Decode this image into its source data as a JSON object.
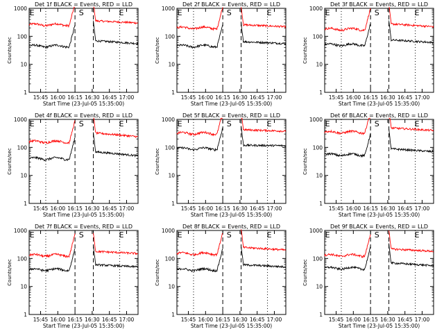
{
  "chart_data": [
    {
      "type": "line",
      "title": "Det 1f BLACK = Events, RED = LLD",
      "xlabel": "Start Time (23-Jul-05 15:35:00)",
      "ylabel": "Counts/sec",
      "yscale": "log",
      "ylim": [
        1,
        1000
      ],
      "x_ticks": [
        "15:45",
        "16:00",
        "16:15",
        "16:30",
        "16:45",
        "17:00"
      ],
      "y_ticks": [
        "1",
        "10",
        "100",
        "1000"
      ],
      "markers": [
        "E",
        "S",
        "E"
      ],
      "series": [
        {
          "color": "#ff0000",
          "pre": 260,
          "post": 360,
          "post_end": 300
        },
        {
          "color": "#000000",
          "pre": 45,
          "post": 70,
          "post_end": 55
        }
      ]
    },
    {
      "type": "line",
      "title": "Det 2f BLACK = Events, RED = LLD",
      "xlabel": "Start Time (23-Jul-05 15:35:00)",
      "ylabel": "Counts/sec",
      "yscale": "log",
      "ylim": [
        1,
        1000
      ],
      "x_ticks": [
        "15:45",
        "16:00",
        "16:15",
        "16:30",
        "16:45",
        "17:00"
      ],
      "y_ticks": [
        "1",
        "10",
        "100",
        "1000"
      ],
      "markers": [
        "E",
        "S",
        "E"
      ],
      "series": [
        {
          "color": "#ff0000",
          "pre": 200,
          "post": 260,
          "post_end": 220
        },
        {
          "color": "#000000",
          "pre": 45,
          "post": 65,
          "post_end": 55
        }
      ]
    },
    {
      "type": "line",
      "title": "Det 3f BLACK = Events, RED = LLD",
      "xlabel": "Start Time (23-Jul-05 15:35:00)",
      "ylabel": "Counts/sec",
      "yscale": "log",
      "ylim": [
        1,
        1000
      ],
      "x_ticks": [
        "15:45",
        "16:00",
        "16:15",
        "16:30",
        "16:45",
        "17:00"
      ],
      "y_ticks": [
        "1",
        "10",
        "100",
        "1000"
      ],
      "markers": [
        "E",
        "S",
        "E"
      ],
      "series": [
        {
          "color": "#ff0000",
          "pre": 180,
          "post": 280,
          "post_end": 220
        },
        {
          "color": "#000000",
          "pre": 50,
          "post": 75,
          "post_end": 60
        }
      ]
    },
    {
      "type": "line",
      "title": "Det 4f BLACK = Events, RED = LLD",
      "xlabel": "Start Time (23-Jul-05 15:35:00)",
      "ylabel": "Counts/sec",
      "yscale": "log",
      "ylim": [
        1,
        1000
      ],
      "x_ticks": [
        "15:45",
        "16:00",
        "16:15",
        "16:30",
        "16:45",
        "17:00"
      ],
      "y_ticks": [
        "1",
        "10",
        "100",
        "1000"
      ],
      "markers": [
        "E",
        "S",
        "E"
      ],
      "series": [
        {
          "color": "#ff0000",
          "pre": 160,
          "post": 330,
          "post_end": 240
        },
        {
          "color": "#000000",
          "pre": 40,
          "post": 70,
          "post_end": 50
        }
      ]
    },
    {
      "type": "line",
      "title": "Det 5f BLACK = Events, RED = LLD",
      "xlabel": "Start Time (23-Jul-05 15:35:00)",
      "ylabel": "Counts/sec",
      "yscale": "log",
      "ylim": [
        1,
        1000
      ],
      "x_ticks": [
        "15:45",
        "16:00",
        "16:15",
        "16:30",
        "16:45",
        "17:00"
      ],
      "y_ticks": [
        "1",
        "10",
        "100",
        "1000"
      ],
      "markers": [
        "E",
        "S",
        "E"
      ],
      "series": [
        {
          "color": "#ff0000",
          "pre": 320,
          "post": 430,
          "post_end": 380
        },
        {
          "color": "#000000",
          "pre": 90,
          "post": 120,
          "post_end": 115
        }
      ]
    },
    {
      "type": "line",
      "title": "Det 6f BLACK = Events, RED = LLD",
      "xlabel": "Start Time (23-Jul-05 15:35:00)",
      "ylabel": "Counts/sec",
      "yscale": "log",
      "ylim": [
        1,
        1000
      ],
      "x_ticks": [
        "15:45",
        "16:00",
        "16:15",
        "16:30",
        "16:45",
        "17:00"
      ],
      "y_ticks": [
        "1",
        "10",
        "100",
        "1000"
      ],
      "markers": [
        "E",
        "S",
        "E"
      ],
      "series": [
        {
          "color": "#ff0000",
          "pre": 350,
          "post": 500,
          "post_end": 400
        },
        {
          "color": "#000000",
          "pre": 55,
          "post": 90,
          "post_end": 70
        }
      ]
    },
    {
      "type": "line",
      "title": "Det 7f BLACK = Events, RED = LLD",
      "xlabel": "Start Time (23-Jul-05 15:35:00)",
      "ylabel": "Counts/sec",
      "yscale": "log",
      "ylim": [
        1,
        1000
      ],
      "x_ticks": [
        "15:45",
        "16:00",
        "16:15",
        "16:30",
        "16:45",
        "17:00"
      ],
      "y_ticks": [
        "1",
        "10",
        "100",
        "1000"
      ],
      "markers": [
        "E",
        "S",
        "E"
      ],
      "series": [
        {
          "color": "#ff0000",
          "pre": 130,
          "post": 180,
          "post_end": 150
        },
        {
          "color": "#000000",
          "pre": 40,
          "post": 60,
          "post_end": 50
        }
      ]
    },
    {
      "type": "line",
      "title": "Det 8f BLACK = Events, RED = LLD",
      "xlabel": "Start Time (23-Jul-05 15:35:00)",
      "ylabel": "Counts/sec",
      "yscale": "log",
      "ylim": [
        1,
        1000
      ],
      "x_ticks": [
        "15:45",
        "16:00",
        "16:15",
        "16:30",
        "16:45",
        "17:00"
      ],
      "y_ticks": [
        "1",
        "10",
        "100",
        "1000"
      ],
      "markers": [
        "E",
        "S",
        "E"
      ],
      "series": [
        {
          "color": "#ff0000",
          "pre": 150,
          "post": 250,
          "post_end": 200
        },
        {
          "color": "#000000",
          "pre": 40,
          "post": 60,
          "post_end": 50
        }
      ]
    },
    {
      "type": "line",
      "title": "Det 9f BLACK = Events, RED = LLD",
      "xlabel": "Start Time (23-Jul-05 15:35:00)",
      "ylabel": "Counts/sec",
      "yscale": "log",
      "ylim": [
        1,
        1000
      ],
      "x_ticks": [
        "15:45",
        "16:00",
        "16:15",
        "16:30",
        "16:45",
        "17:00"
      ],
      "y_ticks": [
        "1",
        "10",
        "100",
        "1000"
      ],
      "markers": [
        "E",
        "S",
        "E"
      ],
      "series": [
        {
          "color": "#ff0000",
          "pre": 130,
          "post": 220,
          "post_end": 180
        },
        {
          "color": "#000000",
          "pre": 45,
          "post": 70,
          "post_end": 55
        }
      ]
    }
  ]
}
